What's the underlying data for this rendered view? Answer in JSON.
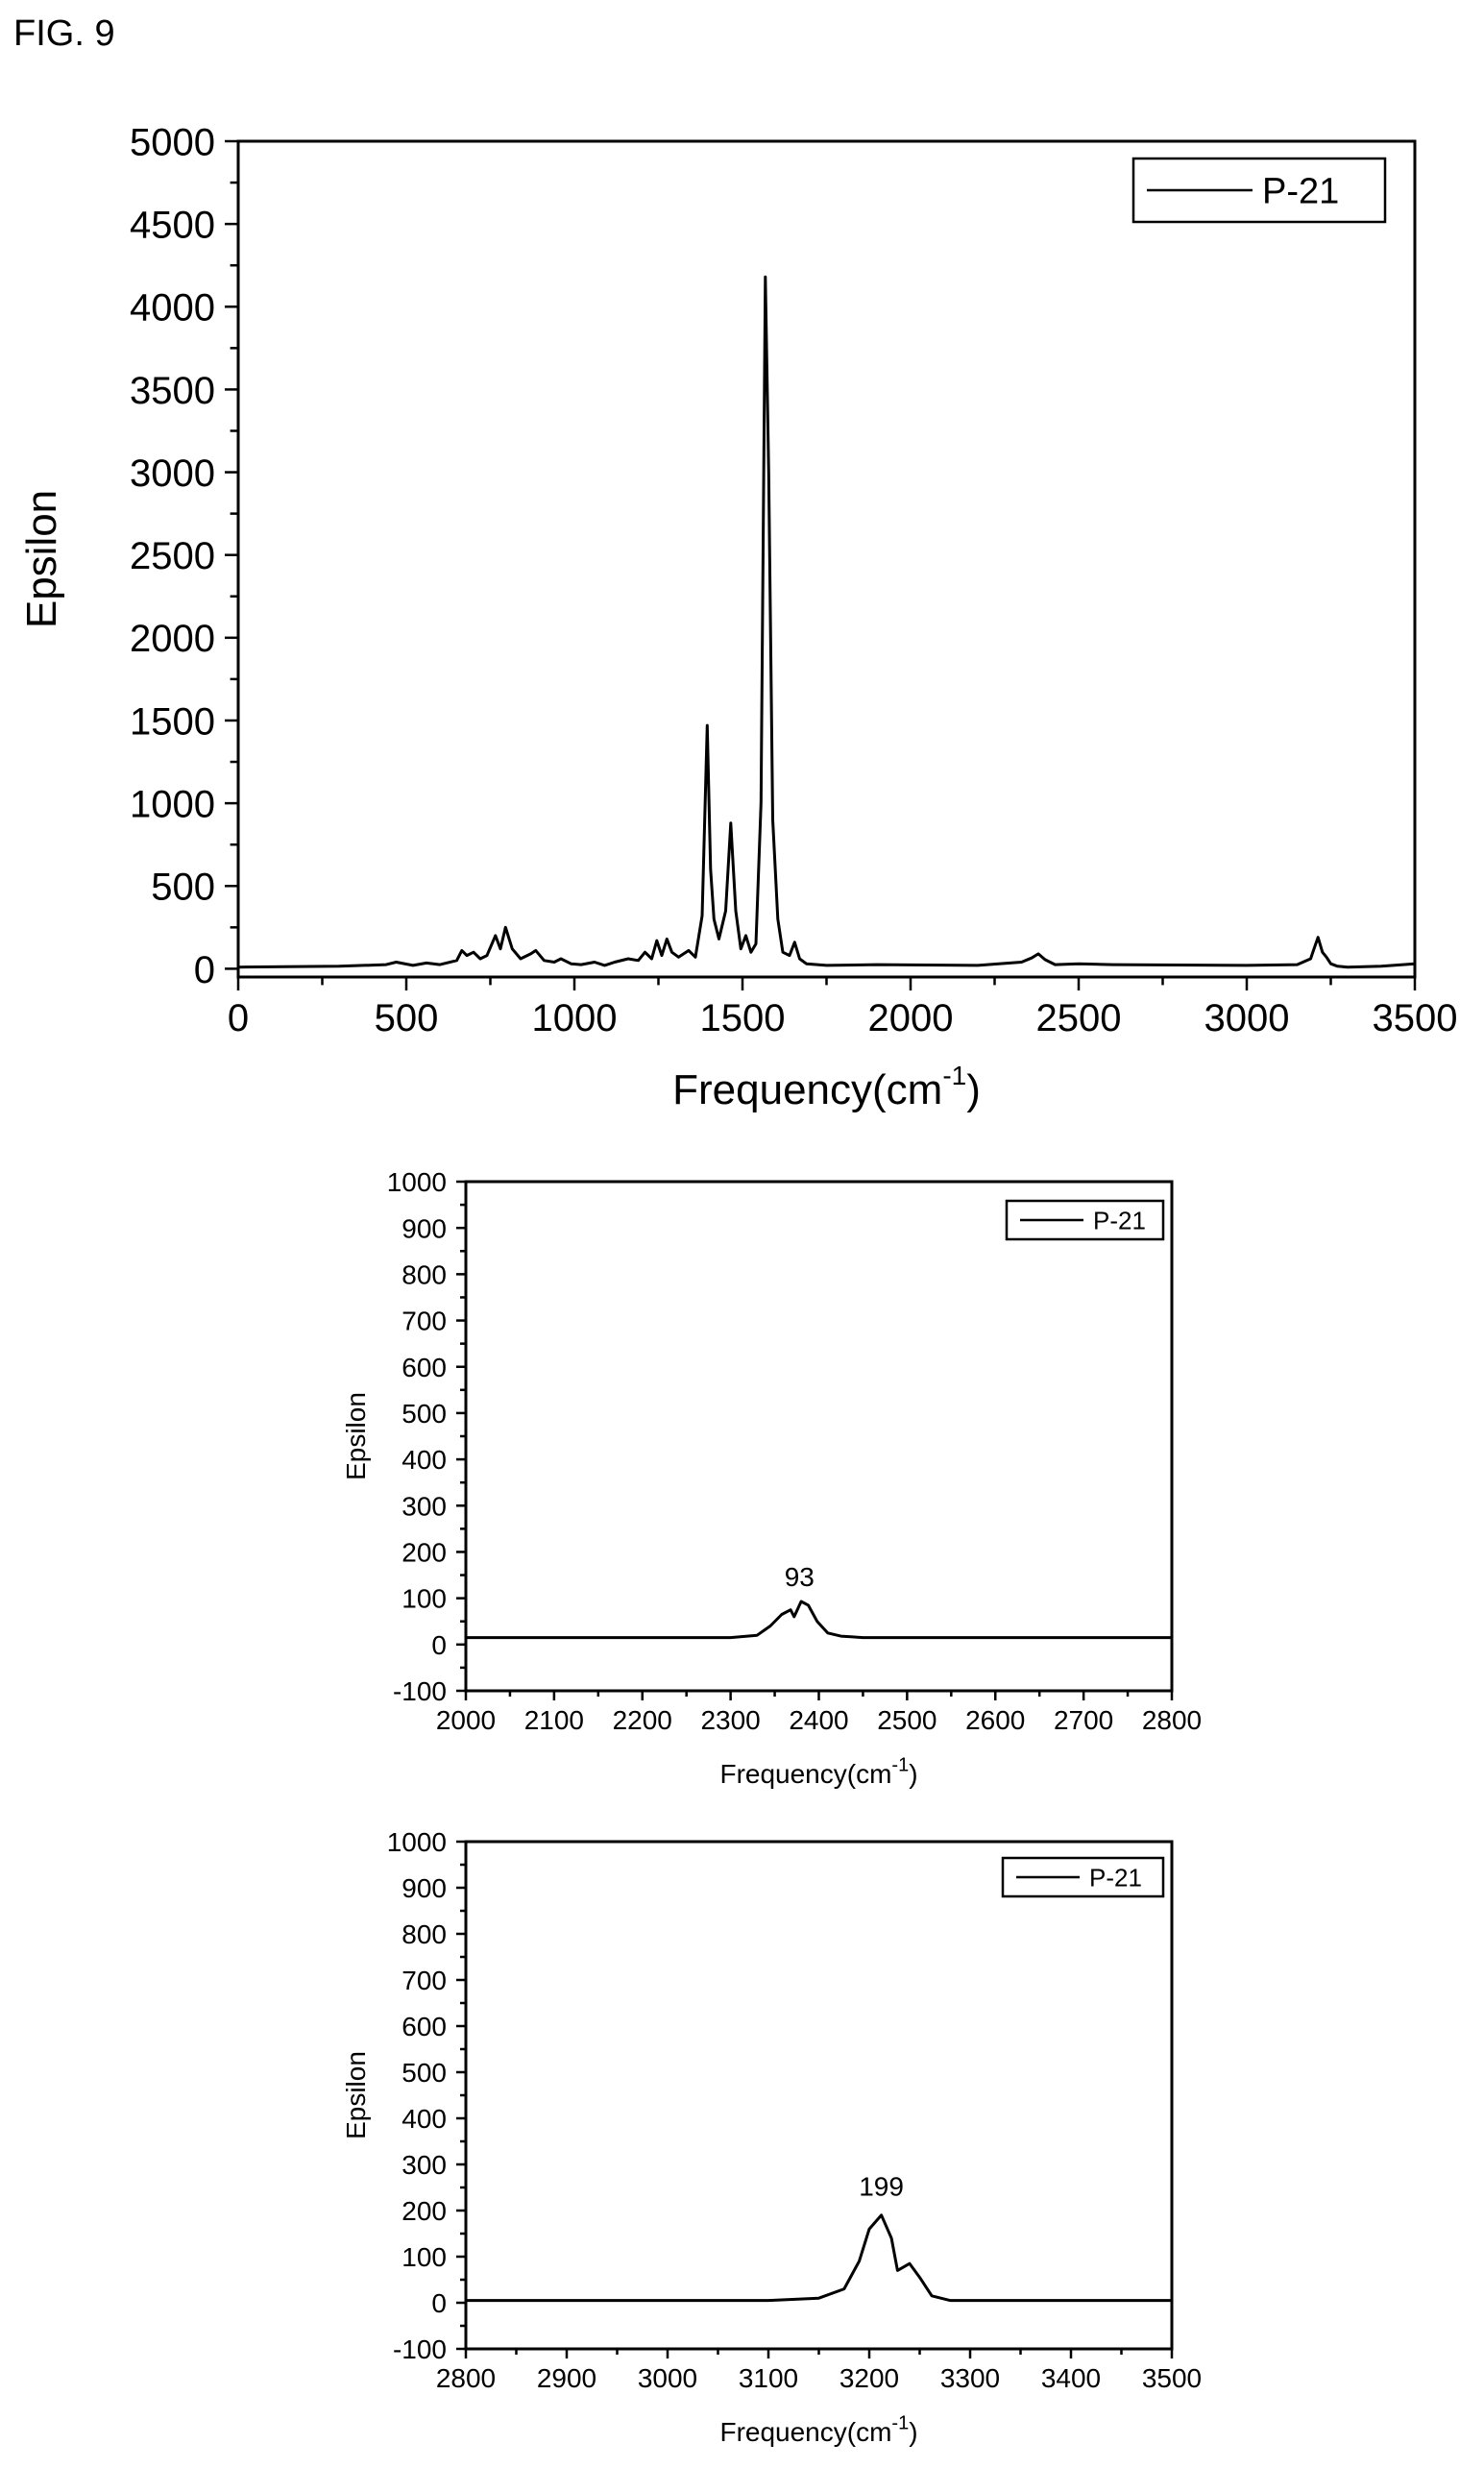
{
  "figure_label": "FIG. 9",
  "chart_data": [
    {
      "type": "line",
      "xlabel": "Frequency(cm",
      "xlabel_sup": "-1",
      "xlabel_close": ")",
      "ylabel": "Epsilon",
      "xlim": [
        0,
        3500
      ],
      "ylim": [
        -50,
        5000
      ],
      "xticks": [
        0,
        500,
        1000,
        1500,
        2000,
        2500,
        3000,
        3500
      ],
      "yticks": [
        0,
        500,
        1000,
        1500,
        2000,
        2500,
        3000,
        3500,
        4000,
        4500,
        5000
      ],
      "legend": "top-right",
      "series": [
        {
          "name": "P-21",
          "x": [
            0,
            300,
            440,
            470,
            520,
            560,
            600,
            650,
            665,
            680,
            700,
            720,
            740,
            765,
            780,
            795,
            815,
            840,
            870,
            885,
            910,
            940,
            960,
            990,
            1020,
            1060,
            1090,
            1120,
            1160,
            1190,
            1210,
            1230,
            1245,
            1260,
            1275,
            1290,
            1310,
            1340,
            1360,
            1380,
            1395,
            1405,
            1415,
            1430,
            1450,
            1465,
            1480,
            1495,
            1510,
            1525,
            1540,
            1555,
            1568,
            1578,
            1590,
            1605,
            1620,
            1640,
            1655,
            1670,
            1690,
            1750,
            1900,
            2200,
            2330,
            2360,
            2380,
            2400,
            2430,
            2500,
            2600,
            3000,
            3150,
            3190,
            3200,
            3212,
            3225,
            3237,
            3250,
            3270,
            3300,
            3400,
            3500
          ],
          "y": [
            10,
            15,
            25,
            40,
            20,
            35,
            25,
            50,
            110,
            80,
            100,
            60,
            80,
            200,
            120,
            250,
            120,
            60,
            90,
            110,
            50,
            40,
            60,
            30,
            25,
            40,
            20,
            40,
            60,
            50,
            100,
            60,
            170,
            80,
            180,
            100,
            70,
            110,
            70,
            320,
            1470,
            600,
            300,
            180,
            350,
            880,
            350,
            120,
            200,
            100,
            150,
            1000,
            4180,
            3000,
            900,
            300,
            100,
            80,
            160,
            60,
            30,
            20,
            25,
            20,
            40,
            65,
            90,
            55,
            25,
            30,
            25,
            20,
            25,
            60,
            120,
            190,
            100,
            70,
            30,
            15,
            10,
            15,
            30
          ]
        }
      ]
    },
    {
      "type": "line",
      "xlabel": "Frequency(cm",
      "xlabel_sup": "-1",
      "xlabel_close": ")",
      "ylabel": "Epsilon",
      "xlim": [
        2000,
        2800
      ],
      "ylim": [
        -100,
        1000
      ],
      "xticks": [
        2000,
        2100,
        2200,
        2300,
        2400,
        2500,
        2600,
        2700,
        2800
      ],
      "yticks": [
        -100,
        0,
        100,
        200,
        300,
        400,
        500,
        600,
        700,
        800,
        900,
        1000
      ],
      "legend": "top-right",
      "annotations": [
        {
          "x": 2378,
          "y": 93,
          "text": "93"
        }
      ],
      "series": [
        {
          "name": "P-21",
          "x": [
            2000,
            2300,
            2330,
            2345,
            2358,
            2368,
            2372,
            2380,
            2388,
            2398,
            2410,
            2425,
            2450,
            2600,
            2800
          ],
          "y": [
            15,
            15,
            20,
            40,
            65,
            75,
            60,
            93,
            85,
            50,
            25,
            18,
            15,
            15,
            15
          ]
        }
      ]
    },
    {
      "type": "line",
      "xlabel": "Frequency(cm",
      "xlabel_sup": "-1",
      "xlabel_close": ")",
      "ylabel": "Epsilon",
      "xlim": [
        2800,
        3500
      ],
      "ylim": [
        -100,
        1000
      ],
      "xticks": [
        2800,
        2900,
        3000,
        3100,
        3200,
        3300,
        3400,
        3500
      ],
      "yticks": [
        -100,
        0,
        100,
        200,
        300,
        400,
        500,
        600,
        700,
        800,
        900,
        1000
      ],
      "legend": "top-right",
      "annotations": [
        {
          "x": 3212,
          "y": 199,
          "text": "199"
        }
      ],
      "series": [
        {
          "name": "P-21",
          "x": [
            2800,
            3100,
            3150,
            3175,
            3190,
            3200,
            3212,
            3222,
            3228,
            3240,
            3250,
            3262,
            3280,
            3300,
            3500
          ],
          "y": [
            5,
            5,
            10,
            30,
            90,
            160,
            190,
            140,
            70,
            85,
            55,
            15,
            5,
            5,
            5
          ]
        }
      ]
    }
  ]
}
